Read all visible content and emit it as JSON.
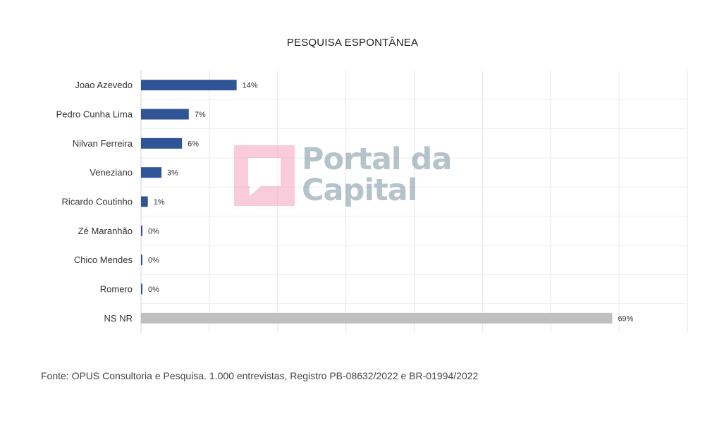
{
  "chart_data": {
    "type": "bar",
    "orientation": "horizontal",
    "title": "PESQUISA ESPONTÂNEA",
    "categories": [
      "Joao Azevedo",
      "Pedro Cunha Lima",
      "Nilvan Ferreira",
      "Veneziano",
      "Ricardo Coutinho",
      "Zé Maranhão",
      "Chico Mendes",
      "Romero",
      "NS NR"
    ],
    "values": [
      14,
      7,
      6,
      3,
      1,
      0,
      0,
      0,
      69
    ],
    "value_labels": [
      "14%",
      "7%",
      "6%",
      "3%",
      "1%",
      "0%",
      "0%",
      "0%",
      "69%"
    ],
    "colors": [
      "#2f5597",
      "#2f5597",
      "#2f5597",
      "#2f5597",
      "#2f5597",
      "#2f5597",
      "#2f5597",
      "#2f5597",
      "#bfbfbf"
    ],
    "xlim": [
      0,
      80
    ],
    "grid": true
  },
  "source_note": "Fonte: OPUS Consultoria e Pesquisa. 1.000 entrevistas, Registro PB-08632/2022 e BR-01994/2022",
  "watermark": {
    "line1": "Portal da",
    "line2": "Capital",
    "logo_color": "#f48fb1"
  }
}
